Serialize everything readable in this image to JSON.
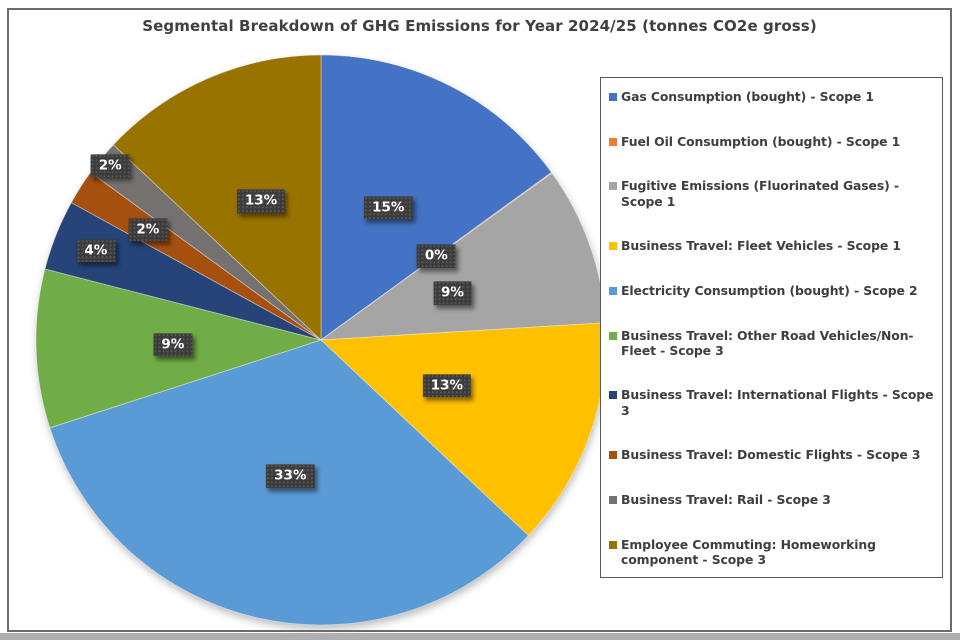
{
  "chart_data": {
    "type": "pie",
    "title": "Segmental Breakdown of GHG Emissions for Year 2024/25 (tonnes CO2e gross)",
    "unit": "percent of total tonnes CO2e gross",
    "legend_position": "right",
    "slices": [
      {
        "label": "Gas Consumption (bought) - Scope 1",
        "percent": 15,
        "display": "15%",
        "color": "#4472C4"
      },
      {
        "label": "Fuel Oil Consumption (bought) - Scope 1",
        "percent": 0,
        "display": "0%",
        "color": "#ED7D31"
      },
      {
        "label": "Fugitive Emissions (Fluorinated Gases) - Scope 1",
        "percent": 9,
        "display": "9%",
        "color": "#A5A5A5"
      },
      {
        "label": "Business Travel: Fleet Vehicles - Scope 1",
        "percent": 13,
        "display": "13%",
        "color": "#FFC000"
      },
      {
        "label": "Electricity Consumption (bought) - Scope 2",
        "percent": 33,
        "display": "33%",
        "color": "#5B9BD5"
      },
      {
        "label": "Business Travel: Other Road Vehicles/Non-Fleet - Scope 3",
        "percent": 9,
        "display": "9%",
        "color": "#70AD47"
      },
      {
        "label": "Business Travel: International Flights - Scope 3",
        "percent": 4,
        "display": "4%",
        "color": "#264478"
      },
      {
        "label": "Business Travel: Domestic Flights - Scope 3",
        "percent": 2,
        "display": "2%",
        "color": "#A6500F"
      },
      {
        "label": "Business Travel: Rail - Scope 3",
        "percent": 2,
        "display": "2%",
        "color": "#757171"
      },
      {
        "label": "Employee Commuting: Homeworking component - Scope 3",
        "percent": 13,
        "display": "13%",
        "color": "#997300"
      }
    ],
    "layout_hints": {
      "start_angle_deg": 0,
      "direction": "clockwise",
      "legend_position": "right",
      "label_radius_factors": [
        0.52,
        0.5,
        0.49,
        0.47,
        0.49,
        0.52,
        0.85,
        0.72,
        0.96,
        0.53
      ],
      "zero_slice_render_percent": 0.05
    }
  }
}
